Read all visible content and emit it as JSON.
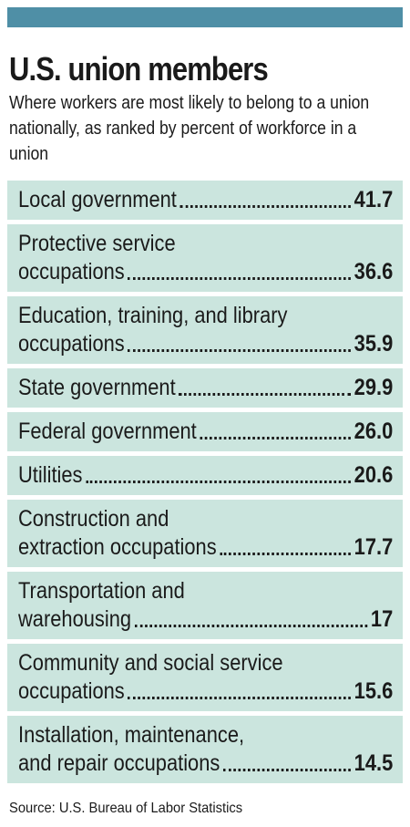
{
  "header": {
    "title": "U.S. union members",
    "subtitle": "Where workers are most likely to belong to a union nationally, as ranked by percent of workforce in a union",
    "accent_color": "#4f8fa6",
    "row_color": "#cbe5de"
  },
  "chart_data": {
    "type": "table",
    "title": "U.S. union members",
    "subtitle": "Where workers are most likely to belong to a union nationally, as ranked by percent of workforce in a union",
    "rows": [
      {
        "lines": [
          "Local government"
        ],
        "value": "41.7"
      },
      {
        "lines": [
          "Protective service",
          "occupations"
        ],
        "value": "36.6"
      },
      {
        "lines": [
          "Education, training, and library",
          "occupations"
        ],
        "value": "35.9"
      },
      {
        "lines": [
          "State government"
        ],
        "value": "29.9"
      },
      {
        "lines": [
          "Federal government"
        ],
        "value": "26.0"
      },
      {
        "lines": [
          "Utilities"
        ],
        "value": "20.6"
      },
      {
        "lines": [
          "Construction and",
          "extraction occupations"
        ],
        "value": "17.7"
      },
      {
        "lines": [
          "Transportation and",
          "warehousing"
        ],
        "value": "17"
      },
      {
        "lines": [
          "Community and social service",
          "occupations"
        ],
        "value": "15.6"
      },
      {
        "lines": [
          "Installation, maintenance,",
          "and repair occupations"
        ],
        "value": "14.5"
      }
    ]
  },
  "source": "Source: U.S. Bureau of Labor Statistics"
}
